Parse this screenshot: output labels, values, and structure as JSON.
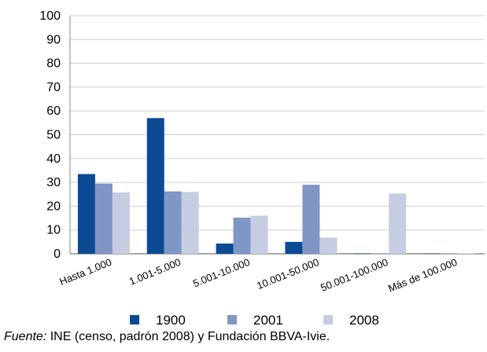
{
  "chart_data": {
    "type": "bar",
    "categories": [
      "Hasta 1.000",
      "1.001-5.000",
      "5.001-10.000",
      "10.001-50.000",
      "50.001-100.000",
      "Más de 100.000"
    ],
    "series": [
      {
        "name": "1900",
        "values": [
          33.5,
          57,
          4.3,
          5,
          0.2,
          0.2
        ],
        "color": "#0c4a94"
      },
      {
        "name": "2001",
        "values": [
          29.5,
          26.2,
          15.2,
          29,
          0.2,
          0.2
        ],
        "color": "#7f96c6"
      },
      {
        "name": "2008",
        "values": [
          25.8,
          26,
          16,
          6.8,
          25.3,
          0.2
        ],
        "color": "#c6cde3"
      }
    ],
    "ylim": [
      0,
      100
    ],
    "yticks": [
      0,
      10,
      20,
      30,
      40,
      50,
      60,
      70,
      80,
      90,
      100
    ],
    "grid": true,
    "legend_position": "bottom",
    "title": "",
    "xlabel": "",
    "ylabel": ""
  },
  "source": {
    "label": "Fuente:",
    "text": " INE (censo, padrón 2008) y Fundación BBVA-Ivie."
  }
}
